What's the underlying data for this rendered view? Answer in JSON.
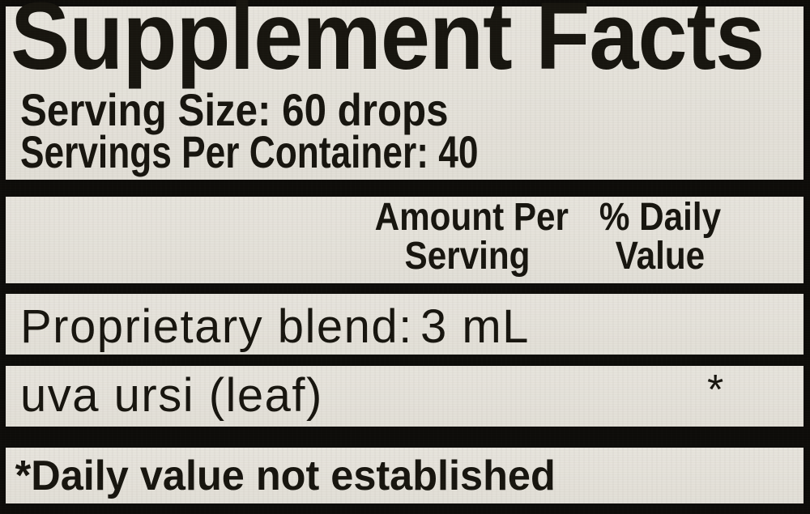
{
  "label": {
    "title": "Supplement Facts",
    "serving_size": "Serving Size: 60 drops",
    "servings_per_container": "Servings Per Container: 40",
    "columns": {
      "amount_line1": "Amount Per",
      "amount_line2": "Serving",
      "dv_line1": "% Daily",
      "dv_line2": "Value"
    },
    "rows": [
      {
        "name": "Proprietary blend:",
        "amount": "3 mL",
        "daily_value": ""
      },
      {
        "name": "uva ursi (leaf)",
        "amount": "",
        "daily_value": "*"
      }
    ],
    "footnote": "*Daily value not established",
    "colors": {
      "background": "#e4e1da",
      "ink": "#17150f",
      "bar": "#0d0c09"
    }
  }
}
